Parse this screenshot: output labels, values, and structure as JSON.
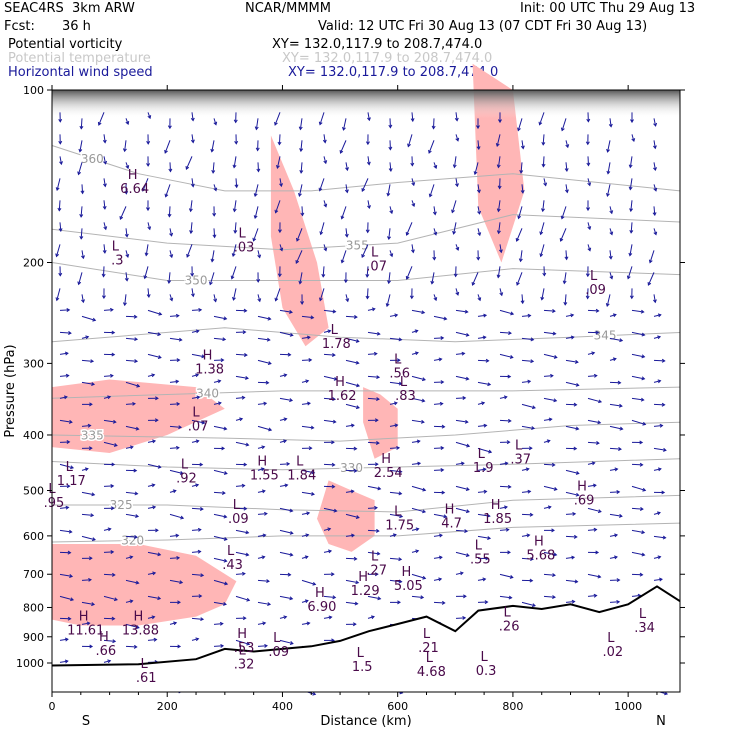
{
  "header": {
    "model": "SEAC4RS  3km ARW",
    "source": "NCAR/MMMM",
    "init": "Init: 00 UTC Thu 29 Aug 13",
    "fcst_label": "Fcst:",
    "fcst_value": "36 h",
    "valid": "Valid: 12 UTC Fri 30 Aug 13 (07 CDT Fri 30 Aug 13)"
  },
  "fields": [
    {
      "name": "Potential vorticity",
      "xy": "XY= 132.0,117.9 to 208.7,474.0",
      "color": "#000000"
    },
    {
      "name": "Potential temperature",
      "xy": "XY= 132.0,117.9 to 208.7,474.0",
      "color": "#c8c8c8"
    },
    {
      "name": "Horizontal wind speed",
      "xy": "XY= 132.0,117.9 to 208.7,474.0",
      "color": "#1a1a9a"
    }
  ],
  "colors": {
    "shading": "#ffb6b6",
    "theta_contour": "#b4b4b4",
    "pv_contour": "#4a0a4a",
    "wind_vector": "#1a1a9a",
    "terrain": "#000000"
  },
  "chart_data": {
    "type": "cross-section",
    "xlabel": "Distance (km)",
    "ylabel": "Pressure (hPa)",
    "xlim": [
      0,
      1090
    ],
    "ylim": [
      1050,
      100
    ],
    "y_scale": "log",
    "x_ticks": [
      0,
      200,
      400,
      600,
      800,
      1000
    ],
    "y_ticks": [
      100,
      200,
      300,
      400,
      500,
      600,
      700,
      800,
      900,
      1000
    ],
    "endpoint_left": "S",
    "endpoint_right": "N",
    "theta_contours": [
      {
        "level": "360",
        "label_x": 70,
        "points": [
          [
            0,
            125
          ],
          [
            150,
            140
          ],
          [
            300,
            150
          ],
          [
            450,
            150
          ],
          [
            600,
            145
          ],
          [
            800,
            140
          ],
          [
            1090,
            150
          ]
        ]
      },
      {
        "level": "355",
        "label_x": 530,
        "points": [
          [
            0,
            175
          ],
          [
            200,
            185
          ],
          [
            400,
            190
          ],
          [
            600,
            185
          ],
          [
            800,
            165
          ],
          [
            1090,
            170
          ]
        ]
      },
      {
        "level": "350",
        "label_x": 250,
        "points": [
          [
            0,
            200
          ],
          [
            200,
            215
          ],
          [
            400,
            215
          ],
          [
            600,
            215
          ],
          [
            800,
            205
          ],
          [
            1090,
            210
          ]
        ]
      },
      {
        "level": "345",
        "label_x": 960,
        "points": [
          [
            0,
            275
          ],
          [
            300,
            260
          ],
          [
            500,
            270
          ],
          [
            700,
            275
          ],
          [
            900,
            270
          ],
          [
            1090,
            265
          ]
        ]
      },
      {
        "level": "340",
        "label_x": 270,
        "points": [
          [
            0,
            345
          ],
          [
            200,
            340
          ],
          [
            400,
            335
          ],
          [
            600,
            335
          ],
          [
            800,
            335
          ],
          [
            1090,
            330
          ]
        ]
      },
      {
        "level": "335",
        "label_x": 70,
        "points": [
          [
            0,
            400
          ],
          [
            300,
            405
          ],
          [
            500,
            410
          ],
          [
            700,
            400
          ],
          [
            900,
            385
          ],
          [
            1090,
            380
          ]
        ]
      },
      {
        "level": "330",
        "label_x": 520,
        "points": [
          [
            0,
            445
          ],
          [
            200,
            455
          ],
          [
            400,
            460
          ],
          [
            600,
            455
          ],
          [
            800,
            450
          ],
          [
            1090,
            440
          ]
        ]
      },
      {
        "level": "325",
        "label_x": 120,
        "points": [
          [
            0,
            530
          ],
          [
            200,
            530
          ],
          [
            400,
            540
          ],
          [
            600,
            545
          ],
          [
            800,
            520
          ],
          [
            1090,
            510
          ]
        ]
      },
      {
        "level": "320",
        "label_x": 140,
        "points": [
          [
            0,
            615
          ],
          [
            200,
            610
          ],
          [
            400,
            600
          ],
          [
            600,
            600
          ],
          [
            800,
            580
          ],
          [
            1090,
            570
          ]
        ]
      }
    ],
    "pv_values": [
      {
        "type": "H",
        "value": "6.64",
        "x": 140,
        "p": 150
      },
      {
        "type": "L",
        "value": ".03",
        "x": 330,
        "p": 190
      },
      {
        "type": "L",
        "value": ".3",
        "x": 110,
        "p": 200
      },
      {
        "type": "L",
        "value": ".07",
        "x": 560,
        "p": 205
      },
      {
        "type": "L",
        "value": ".09",
        "x": 940,
        "p": 225
      },
      {
        "type": "L",
        "value": "1.78",
        "x": 490,
        "p": 280
      },
      {
        "type": "H",
        "value": "1.38",
        "x": 270,
        "p": 310
      },
      {
        "type": "L",
        "value": ".56",
        "x": 600,
        "p": 315
      },
      {
        "type": "H",
        "value": "1.62",
        "x": 500,
        "p": 345
      },
      {
        "type": "L",
        "value": ".83",
        "x": 610,
        "p": 345
      },
      {
        "type": "L",
        "value": ".07",
        "x": 250,
        "p": 390
      },
      {
        "type": "L",
        "value": ".37",
        "x": 810,
        "p": 445
      },
      {
        "type": "L",
        "value": "1.9",
        "x": 745,
        "p": 460
      },
      {
        "type": "L",
        "value": "1.17",
        "x": 30,
        "p": 485
      },
      {
        "type": "L",
        "value": ".92",
        "x": 230,
        "p": 480
      },
      {
        "type": "H",
        "value": "1.55",
        "x": 365,
        "p": 475
      },
      {
        "type": "L",
        "value": "1.84",
        "x": 430,
        "p": 475
      },
      {
        "type": "H",
        "value": "2.54",
        "x": 580,
        "p": 470
      },
      {
        "type": "L",
        "value": ".95",
        "x": 0,
        "p": 530
      },
      {
        "type": "L",
        "value": ".09",
        "x": 320,
        "p": 565
      },
      {
        "type": "L",
        "value": "1.75",
        "x": 600,
        "p": 580
      },
      {
        "type": "H",
        "value": "4.7",
        "x": 690,
        "p": 575
      },
      {
        "type": "H",
        "value": "1.85",
        "x": 770,
        "p": 565
      },
      {
        "type": "H",
        "value": ".69",
        "x": 920,
        "p": 525
      },
      {
        "type": "H",
        "value": "5.68",
        "x": 845,
        "p": 655
      },
      {
        "type": "L",
        "value": ".55",
        "x": 740,
        "p": 665
      },
      {
        "type": "L",
        "value": ".43",
        "x": 310,
        "p": 680
      },
      {
        "type": "L",
        "value": ".27",
        "x": 560,
        "p": 695
      },
      {
        "type": "H",
        "value": "1.29",
        "x": 540,
        "p": 755
      },
      {
        "type": "H",
        "value": "5.05",
        "x": 615,
        "p": 740
      },
      {
        "type": "H",
        "value": "6.90",
        "x": 465,
        "p": 805
      },
      {
        "type": "H",
        "value": "11.61",
        "x": 55,
        "p": 885
      },
      {
        "type": "H",
        "value": "13.88",
        "x": 150,
        "p": 885
      },
      {
        "type": "L",
        "value": ".26",
        "x": 790,
        "p": 870
      },
      {
        "type": "L",
        "value": ".34",
        "x": 1025,
        "p": 875
      },
      {
        "type": "H",
        "value": ".66",
        "x": 90,
        "p": 960
      },
      {
        "type": "H",
        "value": ".53",
        "x": 330,
        "p": 950
      },
      {
        "type": "L",
        "value": ".09",
        "x": 390,
        "p": 965
      },
      {
        "type": "L",
        "value": ".21",
        "x": 650,
        "p": 950
      },
      {
        "type": "L",
        "value": ".02",
        "x": 970,
        "p": 965
      },
      {
        "type": "L",
        "value": ".32",
        "x": 330,
        "p": 1015
      },
      {
        "type": "L",
        "value": "1.5",
        "x": 535,
        "p": 1025
      },
      {
        "type": "L",
        "value": "4.68",
        "x": 655,
        "p": 1045
      },
      {
        "type": "L",
        "value": "0.3",
        "x": 750,
        "p": 1040
      },
      {
        "type": "L",
        "value": ".61",
        "x": 160,
        "p": 1070
      }
    ],
    "terrain_surface": [
      [
        0,
        1010
      ],
      [
        150,
        1005
      ],
      [
        250,
        985
      ],
      [
        300,
        945
      ],
      [
        350,
        955
      ],
      [
        400,
        945
      ],
      [
        450,
        935
      ],
      [
        500,
        915
      ],
      [
        550,
        880
      ],
      [
        600,
        855
      ],
      [
        650,
        830
      ],
      [
        700,
        880
      ],
      [
        740,
        810
      ],
      [
        800,
        795
      ],
      [
        850,
        805
      ],
      [
        900,
        790
      ],
      [
        950,
        815
      ],
      [
        1000,
        790
      ],
      [
        1050,
        735
      ],
      [
        1090,
        780
      ]
    ],
    "shaded_regions": [
      [
        [
          0,
          330
        ],
        [
          100,
          320
        ],
        [
          250,
          330
        ],
        [
          300,
          360
        ],
        [
          200,
          400
        ],
        [
          100,
          430
        ],
        [
          0,
          420
        ]
      ],
      [
        [
          380,
          120
        ],
        [
          420,
          150
        ],
        [
          460,
          200
        ],
        [
          480,
          260
        ],
        [
          440,
          280
        ],
        [
          400,
          240
        ],
        [
          380,
          180
        ]
      ],
      [
        [
          540,
          330
        ],
        [
          570,
          340
        ],
        [
          600,
          360
        ],
        [
          600,
          420
        ],
        [
          560,
          440
        ],
        [
          540,
          380
        ]
      ],
      [
        [
          0,
          620
        ],
        [
          150,
          620
        ],
        [
          250,
          650
        ],
        [
          320,
          720
        ],
        [
          300,
          790
        ],
        [
          250,
          830
        ],
        [
          150,
          860
        ],
        [
          50,
          860
        ],
        [
          0,
          840
        ]
      ],
      [
        [
          480,
          480
        ],
        [
          520,
          500
        ],
        [
          560,
          520
        ],
        [
          560,
          600
        ],
        [
          520,
          640
        ],
        [
          480,
          620
        ],
        [
          460,
          560
        ]
      ],
      [
        [
          730,
          90
        ],
        [
          800,
          100
        ],
        [
          820,
          150
        ],
        [
          780,
          200
        ],
        [
          740,
          160
        ]
      ]
    ]
  }
}
